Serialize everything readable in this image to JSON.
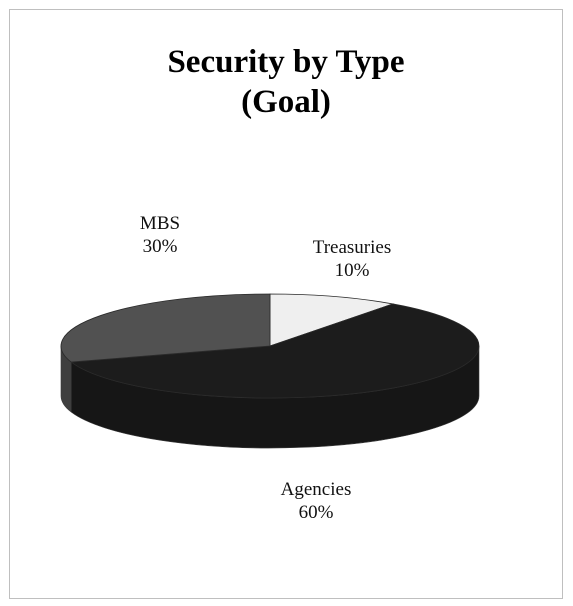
{
  "chart_data": {
    "type": "pie",
    "title_lines": [
      "Security by Type",
      "(Goal)"
    ],
    "slices": [
      {
        "label": "Treasuries",
        "value": 10,
        "value_label": "10%",
        "color": "#efefef"
      },
      {
        "label": "Agencies",
        "value": 60,
        "value_label": "60%",
        "color": "#1c1c1c"
      },
      {
        "label": "MBS",
        "value": 30,
        "value_label": "30%",
        "color": "#515151"
      }
    ],
    "style": "3d"
  }
}
